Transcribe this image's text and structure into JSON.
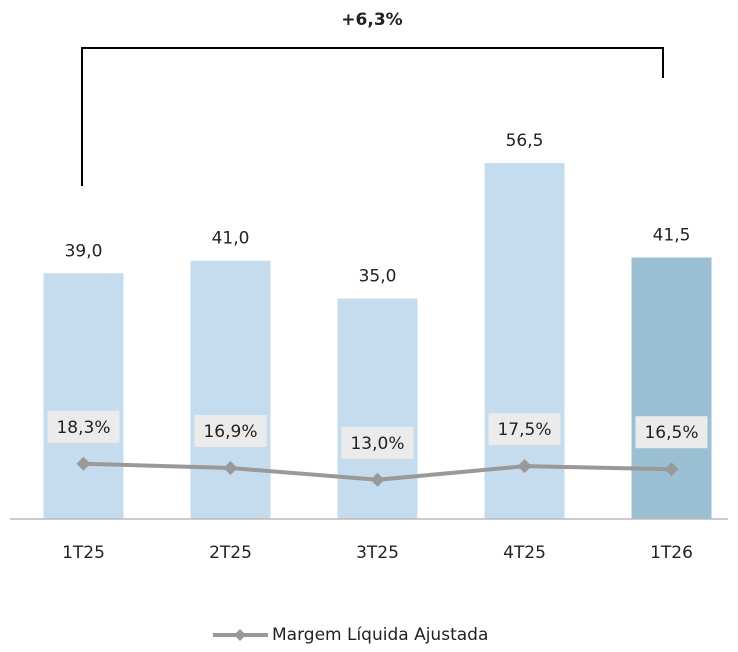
{
  "chart_data": {
    "type": "bar",
    "annotation": "+6,3%",
    "categories": [
      "1T25",
      "2T25",
      "3T25",
      "4T25",
      "1T26"
    ],
    "ylim": [
      0,
      80
    ],
    "y2lim": [
      0,
      167
    ],
    "series": [
      {
        "type": "bar",
        "colors": [
          "#c5dbee",
          "#c5dbee",
          "#c5dbee",
          "#c5dbee",
          "#9bbfd3"
        ],
        "values": [
          39.0,
          41.0,
          35.0,
          56.5,
          41.5
        ],
        "value_labels": [
          "39,0",
          "41,0",
          "35,0",
          "56,5",
          "41,5"
        ]
      },
      {
        "type": "line",
        "name": "Margem Líquida Ajustada",
        "color": "#999999",
        "axis": "y2",
        "values": [
          18.3,
          16.9,
          13.0,
          17.5,
          16.5
        ],
        "value_labels": [
          "18,3%",
          "16,9%",
          "13,0%",
          "17,5%",
          "16,5%"
        ]
      }
    ]
  }
}
